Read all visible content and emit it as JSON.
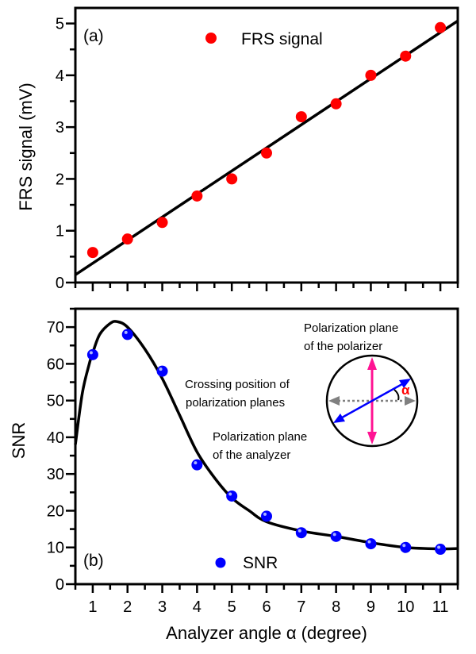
{
  "chart_data": [
    {
      "type": "scatter",
      "panel_label": "(a)",
      "xlabel": "",
      "ylabel": "FRS signal (mV)",
      "xlim": [
        0.5,
        11.5
      ],
      "ylim": [
        0,
        5.3
      ],
      "x_ticks": [
        1,
        2,
        3,
        4,
        5,
        6,
        7,
        8,
        9,
        10,
        11
      ],
      "y_ticks": [
        0,
        1,
        2,
        3,
        4,
        5
      ],
      "grid": false,
      "legend_position": "top-center",
      "series": [
        {
          "name": "FRS signal",
          "color": "#ff0000",
          "marker": "circle",
          "x": [
            1,
            2,
            3,
            4,
            5,
            6,
            7,
            8,
            9,
            10,
            11
          ],
          "y": [
            0.58,
            0.84,
            1.16,
            1.67,
            2.0,
            2.5,
            3.2,
            3.45,
            4.0,
            4.37,
            4.92
          ]
        },
        {
          "type": "line",
          "color": "#000000",
          "x": [
            0.5,
            11.5
          ],
          "y": [
            0.15,
            5.05
          ]
        }
      ]
    },
    {
      "type": "scatter",
      "panel_label": "(b)",
      "xlabel": "Analyzer angle α (degree)",
      "ylabel": "SNR",
      "xlim": [
        0.5,
        11.5
      ],
      "ylim": [
        0,
        75
      ],
      "x_ticks": [
        1,
        2,
        3,
        4,
        5,
        6,
        7,
        8,
        9,
        10,
        11
      ],
      "y_ticks": [
        0,
        10,
        20,
        30,
        40,
        50,
        60,
        70
      ],
      "grid": false,
      "legend_position": "bottom-center",
      "series": [
        {
          "name": "SNR",
          "color": "#0000ff",
          "marker": "sphere",
          "x": [
            1,
            2,
            3,
            4,
            5,
            6,
            7,
            8,
            9,
            10,
            11
          ],
          "y": [
            62.5,
            68,
            58,
            32.5,
            24,
            18.5,
            14,
            13,
            11,
            10,
            9.5
          ]
        },
        {
          "type": "line",
          "color": "#000000",
          "x": [
            0.5,
            0.7,
            0.9,
            1.0,
            1.2,
            1.5,
            1.7,
            2.0,
            2.5,
            3.0,
            3.5,
            4.0,
            4.5,
            5.0,
            5.5,
            6.0,
            7.0,
            8.0,
            9.0,
            10.0,
            11.0,
            11.5
          ],
          "y": [
            38,
            52,
            60,
            63,
            68,
            71,
            71.5,
            70,
            64,
            56,
            46,
            36,
            29,
            23.5,
            20,
            17,
            14.5,
            13,
            11.3,
            10,
            9.6,
            9.7
          ]
        }
      ],
      "inset": {
        "polarizer_label_1": "Polarization plane",
        "polarizer_label_2": "of the polarizer",
        "crossing_label_1": "Crossing position of",
        "crossing_label_2": "polarization planes",
        "analyzer_label_1": "Polarization plane",
        "analyzer_label_2": "of the analyzer",
        "angle_symbol": "α",
        "polarizer_color": "#ff1493",
        "analyzer_color": "#0000ff",
        "crossing_color": "#808080",
        "angle_color": "#ff0000"
      }
    }
  ]
}
